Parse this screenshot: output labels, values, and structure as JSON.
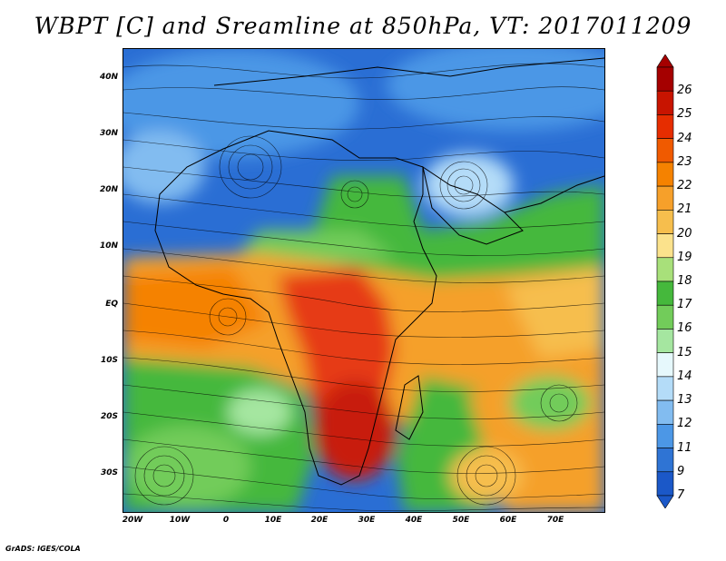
{
  "title": "WBPT [C] and Sreamline at 850hPa, VT: 2017011209",
  "credit": "GrADS: IGES/COLA",
  "lat_labels": [
    "40N",
    "30N",
    "20N",
    "10N",
    "EQ",
    "10S",
    "20S",
    "30S"
  ],
  "lon_labels": [
    "20W",
    "10W",
    "0",
    "10E",
    "20E",
    "30E",
    "40E",
    "50E",
    "60E",
    "70E"
  ],
  "colorbar": {
    "labels": [
      "26",
      "25",
      "24",
      "23",
      "22",
      "21",
      "20",
      "19",
      "18",
      "17",
      "16",
      "15",
      "14",
      "13",
      "12",
      "11",
      "9",
      "7"
    ],
    "colors": [
      "#a50000",
      "#c81400",
      "#e62d00",
      "#f05a00",
      "#f58200",
      "#f6a02a",
      "#f6be4d",
      "#fbe28c",
      "#a8e07a",
      "#45b83c",
      "#72cc5a",
      "#a5e6a0",
      "#e6f8fc",
      "#b4dcf8",
      "#82bcf0",
      "#4c97e6",
      "#2f74d4",
      "#1b58c8"
    ]
  },
  "colors": {
    "cold_blue": "#2a6ed4",
    "mid_blue": "#4c97e6",
    "green": "#45b83c",
    "light_green": "#8fd87a",
    "orange": "#f5a02a",
    "red": "#e63a14",
    "dark_red": "#c81e0a"
  }
}
